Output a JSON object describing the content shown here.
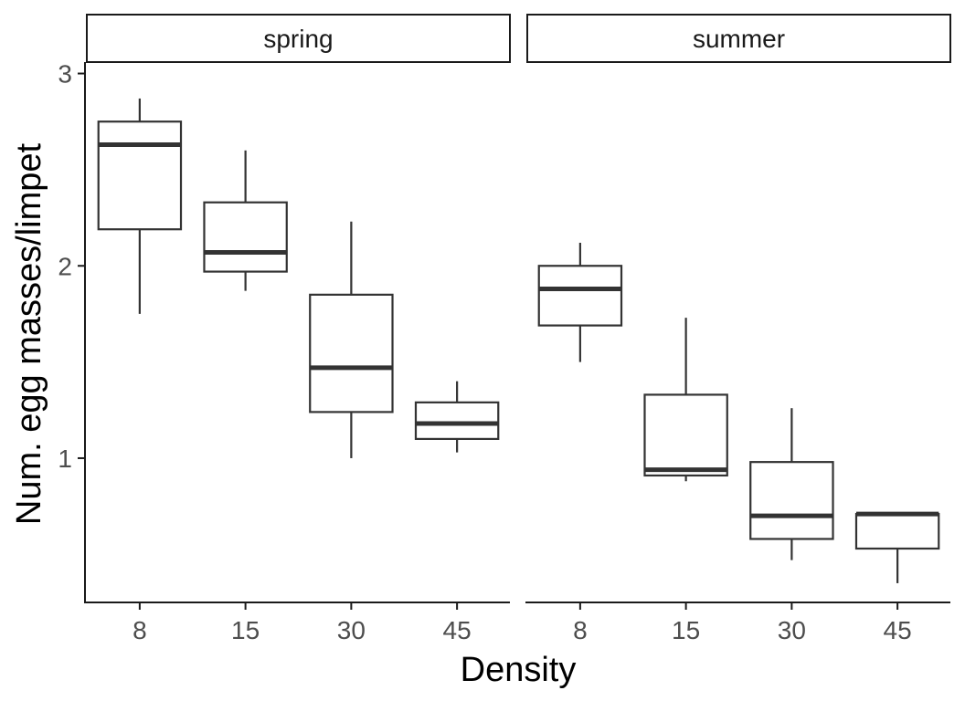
{
  "chart_data": {
    "type": "boxplot",
    "xlabel": "Density",
    "ylabel": "Num. egg masses/limpet",
    "ylim": [
      0.25,
      3.05
    ],
    "yticks": [
      1,
      2,
      3
    ],
    "categories": [
      "8",
      "15",
      "30",
      "45"
    ],
    "grid": false,
    "legend": "none",
    "colors": {
      "box_stroke": "#333333",
      "box_fill": "#ffffff",
      "axis": "#1a1a1a"
    },
    "facets": [
      {
        "label": "spring",
        "boxes": [
          {
            "category": "8",
            "whisker_low": 1.75,
            "q1": 2.19,
            "median": 2.63,
            "q3": 2.75,
            "whisker_high": 2.87
          },
          {
            "category": "15",
            "whisker_low": 1.87,
            "q1": 1.97,
            "median": 2.07,
            "q3": 2.33,
            "whisker_high": 2.6
          },
          {
            "category": "30",
            "whisker_low": 1.0,
            "q1": 1.24,
            "median": 1.47,
            "q3": 1.85,
            "whisker_high": 2.23
          },
          {
            "category": "45",
            "whisker_low": 1.03,
            "q1": 1.1,
            "median": 1.18,
            "q3": 1.29,
            "whisker_high": 1.4
          }
        ]
      },
      {
        "label": "summer",
        "boxes": [
          {
            "category": "8",
            "whisker_low": 1.5,
            "q1": 1.69,
            "median": 1.88,
            "q3": 2.0,
            "whisker_high": 2.12
          },
          {
            "category": "15",
            "whisker_low": 0.88,
            "q1": 0.91,
            "median": 0.94,
            "q3": 1.33,
            "whisker_high": 1.73
          },
          {
            "category": "30",
            "whisker_low": 0.47,
            "q1": 0.58,
            "median": 0.7,
            "q3": 0.98,
            "whisker_high": 1.26
          },
          {
            "category": "45",
            "whisker_low": 0.35,
            "q1": 0.53,
            "median": 0.71,
            "q3": 0.71,
            "whisker_high": 0.71
          }
        ]
      }
    ]
  }
}
